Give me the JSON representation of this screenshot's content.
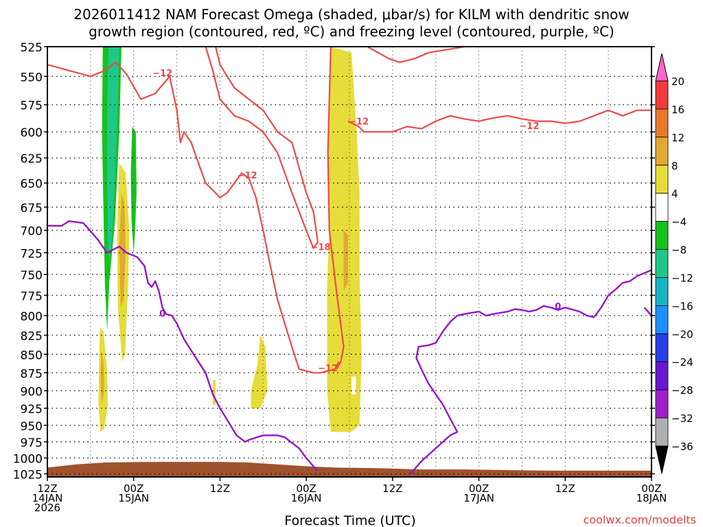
{
  "chart_data": {
    "type": "heatmap",
    "title": "2026011412 NAM Forecast Omega (shaded, μbar/s) for KILM with dendritic snow",
    "subtitle": "growth region (contoured, red, ºC) and freezing level (contoured, purple, ºC)",
    "xlabel": "Forecast Time (UTC)",
    "credit": "coolwx.com/modelts",
    "y_ticks": [
      525,
      550,
      575,
      600,
      625,
      650,
      675,
      700,
      725,
      750,
      775,
      800,
      825,
      850,
      875,
      900,
      925,
      950,
      975,
      1000,
      1025
    ],
    "y_range": [
      525,
      1030
    ],
    "y_scale": "log",
    "x_range_hours": [
      0,
      84
    ],
    "x_ticks": [
      {
        "hour": 0,
        "l1": "12Z",
        "l2": "14JAN",
        "l3": "2026"
      },
      {
        "hour": 12,
        "l1": "00Z",
        "l2": "15JAN",
        "l3": ""
      },
      {
        "hour": 24,
        "l1": "12Z",
        "l2": "",
        "l3": ""
      },
      {
        "hour": 36,
        "l1": "00Z",
        "l2": "16JAN",
        "l3": ""
      },
      {
        "hour": 48,
        "l1": "12Z",
        "l2": "",
        "l3": ""
      },
      {
        "hour": 60,
        "l1": "00Z",
        "l2": "17JAN",
        "l3": ""
      },
      {
        "hour": 72,
        "l1": "12Z",
        "l2": "",
        "l3": ""
      },
      {
        "hour": 84,
        "l1": "00Z",
        "l2": "18JAN",
        "l3": ""
      }
    ],
    "colorbar": {
      "labels": [
        "20",
        "16",
        "12",
        "8",
        "4",
        "−4",
        "−8",
        "−12",
        "−16",
        "−20",
        "−24",
        "−28",
        "−32",
        "−36"
      ],
      "colors": [
        "#ff66cc",
        "#f03c3c",
        "#e8782a",
        "#e2a832",
        "#e6dd3a",
        "#ffffff",
        "#17c21c",
        "#1ec88a",
        "#18b4c4",
        "#1e90ff",
        "#2a3ee8",
        "#6a16d2",
        "#a020c8",
        "#b0b0b0",
        "#000000"
      ]
    },
    "omega_regions": [
      {
        "name": "upward motion band A",
        "color": "#17c21c",
        "points": [
          [
            7.7,
            525
          ],
          [
            10.3,
            525
          ],
          [
            10.0,
            600
          ],
          [
            9.4,
            690
          ],
          [
            8.6,
            760
          ],
          [
            8.3,
            820
          ],
          [
            8.0,
            760
          ],
          [
            7.8,
            680
          ],
          [
            7.6,
            600
          ]
        ]
      },
      {
        "name": "upward motion band A core",
        "color": "#1ec88a",
        "points": [
          [
            8.5,
            525
          ],
          [
            10.0,
            525
          ],
          [
            9.7,
            590
          ],
          [
            9.2,
            680
          ],
          [
            8.7,
            740
          ],
          [
            8.4,
            710
          ],
          [
            8.3,
            640
          ],
          [
            8.3,
            580
          ]
        ]
      },
      {
        "name": "upward motion band B",
        "color": "#17c21c",
        "points": [
          [
            11.8,
            595
          ],
          [
            12.3,
            600
          ],
          [
            12.4,
            660
          ],
          [
            12.2,
            700
          ],
          [
            12.0,
            725
          ],
          [
            11.7,
            690
          ],
          [
            11.6,
            640
          ]
        ]
      },
      {
        "name": "sinking motion A",
        "color": "#e6dd3a",
        "points": [
          [
            10.0,
            630
          ],
          [
            10.9,
            640
          ],
          [
            11.4,
            700
          ],
          [
            11.2,
            770
          ],
          [
            10.8,
            850
          ],
          [
            10.4,
            860
          ],
          [
            9.8,
            790
          ],
          [
            9.7,
            700
          ]
        ]
      },
      {
        "name": "sinking motion A core",
        "color": "#e2a832",
        "points": [
          [
            10.3,
            660
          ],
          [
            10.7,
            670
          ],
          [
            10.9,
            720
          ],
          [
            10.6,
            780
          ],
          [
            10.2,
            790
          ],
          [
            10.0,
            720
          ]
        ]
      },
      {
        "name": "sinking motion B",
        "color": "#e6dd3a",
        "points": [
          [
            7.3,
            815
          ],
          [
            7.8,
            820
          ],
          [
            8.3,
            870
          ],
          [
            8.4,
            920
          ],
          [
            7.9,
            955
          ],
          [
            7.4,
            960
          ],
          [
            7.1,
            920
          ],
          [
            7.2,
            860
          ]
        ]
      },
      {
        "name": "sinking motion B core",
        "color": "#e2a832",
        "points": [
          [
            7.5,
            845
          ],
          [
            7.8,
            860
          ],
          [
            7.9,
            900
          ],
          [
            7.6,
            920
          ],
          [
            7.4,
            890
          ]
        ]
      },
      {
        "name": "sinking motion C",
        "color": "#e6dd3a",
        "points": [
          [
            29.6,
            825
          ],
          [
            30.3,
            840
          ],
          [
            30.6,
            900
          ],
          [
            29.6,
            925
          ],
          [
            28.3,
            925
          ],
          [
            28.3,
            900
          ],
          [
            29.2,
            865
          ]
        ]
      },
      {
        "name": "sinking motion D",
        "color": "#e6dd3a",
        "points": [
          [
            39.4,
            525
          ],
          [
            42.3,
            530
          ],
          [
            43.0,
            600
          ],
          [
            43.4,
            660
          ],
          [
            43.4,
            750
          ],
          [
            43.7,
            850
          ],
          [
            43.4,
            950
          ],
          [
            42.2,
            960
          ],
          [
            39.4,
            960
          ],
          [
            38.9,
            900
          ],
          [
            38.9,
            760
          ],
          [
            39.2,
            700
          ],
          [
            39.0,
            620
          ]
        ]
      },
      {
        "name": "sinking motion D core",
        "color": "#e2a832",
        "points": [
          [
            41.2,
            700
          ],
          [
            41.8,
            705
          ],
          [
            41.8,
            760
          ],
          [
            41.2,
            770
          ]
        ]
      },
      {
        "name": "sinking motion E",
        "color": "#e6dd3a",
        "points": [
          [
            23.0,
            885
          ],
          [
            23.4,
            885
          ],
          [
            23.4,
            920
          ],
          [
            23.0,
            920
          ]
        ]
      }
    ],
    "dgz_isotherm_minus12": [
      [
        [
          0,
          540
        ],
        [
          3,
          545
        ],
        [
          6,
          550
        ],
        [
          8,
          545
        ],
        [
          9.5,
          538
        ],
        [
          11,
          548
        ],
        [
          13,
          570
        ],
        [
          15,
          565
        ],
        [
          17,
          550
        ],
        [
          18,
          580
        ],
        [
          18.5,
          610
        ],
        [
          19,
          600
        ],
        [
          20,
          610
        ],
        [
          21,
          630
        ],
        [
          22,
          650
        ],
        [
          24,
          665
        ],
        [
          25,
          660
        ],
        [
          26,
          650
        ],
        [
          27,
          640
        ],
        [
          28,
          645
        ],
        [
          29,
          665
        ],
        [
          30,
          700
        ],
        [
          31,
          740
        ],
        [
          32,
          780
        ],
        [
          33,
          810
        ],
        [
          34,
          840
        ],
        [
          35,
          870
        ],
        [
          37,
          875
        ],
        [
          38,
          875
        ],
        [
          40,
          870
        ],
        [
          40.5,
          860
        ]
      ],
      [
        [
          22,
          525
        ],
        [
          23,
          545
        ],
        [
          24,
          570
        ],
        [
          26,
          585
        ],
        [
          28,
          590
        ],
        [
          30,
          600
        ],
        [
          32,
          620
        ],
        [
          34,
          660
        ],
        [
          36,
          700
        ],
        [
          37,
          720
        ],
        [
          37.6,
          713
        ],
        [
          37,
          680
        ],
        [
          36,
          660
        ],
        [
          34,
          610
        ],
        [
          32,
          600
        ],
        [
          30,
          580
        ],
        [
          28,
          570
        ],
        [
          26,
          560
        ],
        [
          25,
          550
        ],
        [
          24,
          540
        ],
        [
          23.4,
          525
        ]
      ],
      [
        [
          39.4,
          525
        ],
        [
          39.0,
          620
        ],
        [
          39.2,
          700
        ],
        [
          40.2,
          770
        ],
        [
          41.2,
          840
        ],
        [
          40.8,
          860
        ],
        [
          40.2,
          870
        ]
      ],
      [
        [
          41.8,
          590
        ],
        [
          43.3,
          595
        ],
        [
          44,
          600
        ],
        [
          46,
          600
        ],
        [
          48,
          600
        ],
        [
          50,
          595
        ],
        [
          52,
          597
        ],
        [
          54,
          590
        ],
        [
          56,
          585
        ],
        [
          58,
          588
        ],
        [
          60,
          590
        ],
        [
          62,
          587
        ],
        [
          64,
          585
        ],
        [
          66,
          588
        ],
        [
          68,
          590
        ],
        [
          70,
          590
        ],
        [
          72,
          592
        ],
        [
          74,
          590
        ],
        [
          76,
          585
        ],
        [
          78,
          580
        ],
        [
          80,
          585
        ],
        [
          82,
          580
        ],
        [
          84,
          580
        ]
      ],
      [
        [
          44.5,
          525
        ],
        [
          46,
          530
        ],
        [
          47.5,
          535
        ],
        [
          49,
          538
        ],
        [
          51,
          535
        ],
        [
          53,
          530
        ],
        [
          55,
          528
        ],
        [
          57,
          526
        ],
        [
          58,
          525
        ]
      ]
    ],
    "freezing_level_0C": [
      [
        [
          0,
          695
        ],
        [
          2,
          695
        ],
        [
          3,
          690
        ],
        [
          5,
          692
        ],
        [
          7,
          710
        ],
        [
          8.3,
          725
        ],
        [
          9,
          722
        ],
        [
          10,
          718
        ],
        [
          11,
          725
        ],
        [
          12.5,
          730
        ],
        [
          13.5,
          740
        ],
        [
          14,
          760
        ],
        [
          14.5,
          765
        ],
        [
          15,
          758
        ],
        [
          15.5,
          770
        ],
        [
          16,
          790
        ],
        [
          16.5,
          798
        ],
        [
          17.3,
          800
        ],
        [
          18,
          810
        ],
        [
          19,
          830
        ],
        [
          20,
          845
        ],
        [
          21,
          860
        ],
        [
          22,
          875
        ],
        [
          22.5,
          890
        ],
        [
          23,
          905
        ],
        [
          24,
          925
        ],
        [
          24.6,
          935
        ],
        [
          26.3,
          965
        ],
        [
          27.5,
          975
        ],
        [
          28,
          972
        ],
        [
          30,
          965
        ],
        [
          32,
          965
        ],
        [
          33,
          968
        ],
        [
          35,
          985
        ],
        [
          36,
          1000
        ],
        [
          37.5,
          1020
        ]
      ],
      [
        [
          50.5,
          1025
        ],
        [
          52,
          1005
        ],
        [
          54,
          985
        ],
        [
          56,
          965
        ],
        [
          57,
          960
        ],
        [
          56,
          940
        ],
        [
          55,
          920
        ],
        [
          54,
          905
        ],
        [
          53,
          890
        ],
        [
          52,
          870
        ],
        [
          51.3,
          855
        ],
        [
          51.6,
          840
        ],
        [
          53,
          838
        ],
        [
          54,
          835
        ],
        [
          55,
          820
        ],
        [
          56,
          808
        ],
        [
          57,
          800
        ],
        [
          58,
          798
        ],
        [
          60,
          795
        ],
        [
          61,
          800
        ],
        [
          62,
          798
        ],
        [
          64,
          795
        ],
        [
          65,
          792
        ],
        [
          66,
          793
        ],
        [
          67,
          795
        ],
        [
          68,
          793
        ],
        [
          69,
          788
        ],
        [
          70,
          790
        ],
        [
          71,
          793
        ],
        [
          72,
          790
        ],
        [
          74,
          795
        ],
        [
          75,
          800
        ],
        [
          76,
          802
        ],
        [
          77,
          790
        ],
        [
          78,
          775
        ],
        [
          79,
          768
        ],
        [
          80,
          760
        ],
        [
          81,
          758
        ],
        [
          82,
          752
        ],
        [
          84,
          745
        ]
      ],
      [
        [
          83.0,
          790
        ],
        [
          83.5,
          795
        ],
        [
          84,
          800
        ]
      ]
    ],
    "labels_m12": [
      {
        "text": "−12",
        "h": 16.0,
        "p": 547
      },
      {
        "text": "−12",
        "h": 27.8,
        "p": 642
      },
      {
        "text": "−12",
        "h": 43.3,
        "p": 590
      },
      {
        "text": "−12",
        "h": 67.0,
        "p": 594
      },
      {
        "text": "−18",
        "h": 38.0,
        "p": 718
      },
      {
        "text": "−12",
        "h": 39.0,
        "p": 868
      }
    ],
    "labels_0": [
      {
        "text": "0",
        "h": 16.0,
        "p": 797
      },
      {
        "text": "0",
        "h": 71.0,
        "p": 788
      }
    ],
    "terrain_color": "#a0522d"
  }
}
